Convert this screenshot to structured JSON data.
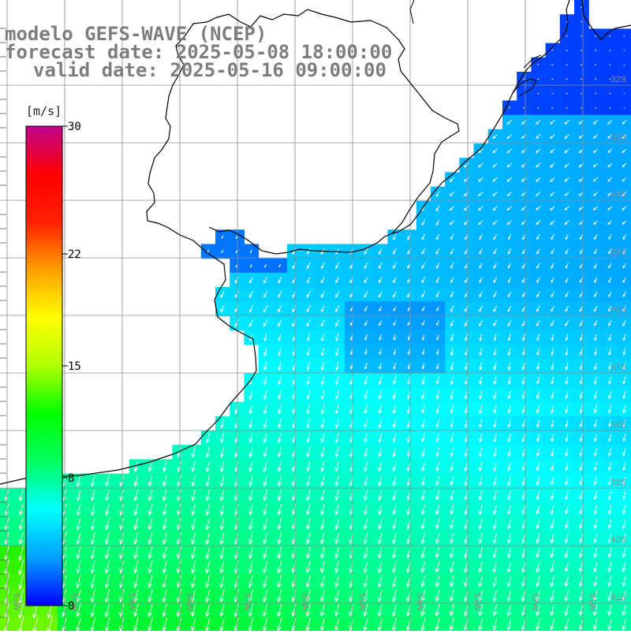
{
  "title": {
    "line1": "modelo GEFS-WAVE (NCEP)",
    "line2": "forecast date: 2025-05-08 18:00:00",
    "line3": "valid date: 2025-05-16 09:00:00"
  },
  "colorbar": {
    "units": "[m/s]",
    "ticks": [
      "30",
      "22",
      "15",
      "8",
      "0"
    ],
    "tick_values": [
      30,
      22,
      15,
      8,
      0
    ],
    "range": [
      0,
      30
    ],
    "colors": [
      "#0000ff",
      "#00a0ff",
      "#00ffff",
      "#00ff60",
      "#00ff00",
      "#b0ff00",
      "#ffff00",
      "#ffa000",
      "#ff2000",
      "#ff0000",
      "#c00090"
    ]
  },
  "map": {
    "lon_labels": [
      "61W",
      "60W",
      "59W",
      "58W",
      "57W",
      "56W",
      "55W",
      "54W",
      "53W",
      "52W",
      "51W"
    ],
    "lat_labels": [
      "32S",
      "33S",
      "34S",
      "35S",
      "36S",
      "37S",
      "38S",
      "39S",
      "40S",
      "41S"
    ],
    "lon_range": [
      -61.0,
      -50.0
    ],
    "lat_range": [
      -41.0,
      -30.6
    ],
    "colors": {
      "land": "#ffffff",
      "grid": "#8c8c8c",
      "coast": "#000000",
      "arrow": "#ffffff"
    }
  }
}
